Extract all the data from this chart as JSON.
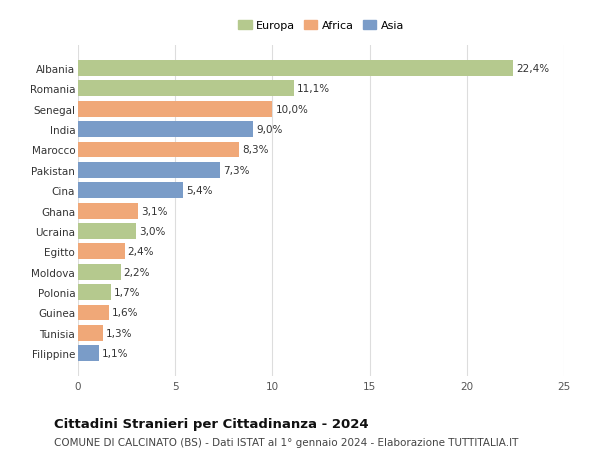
{
  "countries": [
    "Albania",
    "Romania",
    "Senegal",
    "India",
    "Marocco",
    "Pakistan",
    "Cina",
    "Ghana",
    "Ucraina",
    "Egitto",
    "Moldova",
    "Polonia",
    "Guinea",
    "Tunisia",
    "Filippine"
  ],
  "values": [
    22.4,
    11.1,
    10.0,
    9.0,
    8.3,
    7.3,
    5.4,
    3.1,
    3.0,
    2.4,
    2.2,
    1.7,
    1.6,
    1.3,
    1.1
  ],
  "labels": [
    "22,4%",
    "11,1%",
    "10,0%",
    "9,0%",
    "8,3%",
    "7,3%",
    "5,4%",
    "3,1%",
    "3,0%",
    "2,4%",
    "2,2%",
    "1,7%",
    "1,6%",
    "1,3%",
    "1,1%"
  ],
  "continents": [
    "Europa",
    "Europa",
    "Africa",
    "Asia",
    "Africa",
    "Asia",
    "Asia",
    "Africa",
    "Europa",
    "Africa",
    "Europa",
    "Europa",
    "Africa",
    "Africa",
    "Asia"
  ],
  "colors": {
    "Europa": "#b5c98e",
    "Africa": "#f0a878",
    "Asia": "#7a9cc8"
  },
  "legend": [
    "Europa",
    "Africa",
    "Asia"
  ],
  "xlim": [
    0,
    25
  ],
  "xticks": [
    0,
    5,
    10,
    15,
    20,
    25
  ],
  "title": "Cittadini Stranieri per Cittadinanza - 2024",
  "subtitle": "COMUNE DI CALCINATO (BS) - Dati ISTAT al 1° gennaio 2024 - Elaborazione TUTTITALIA.IT",
  "bg_color": "#ffffff",
  "grid_color": "#dddddd",
  "bar_height": 0.78,
  "label_fontsize": 7.5,
  "tick_fontsize": 7.5,
  "title_fontsize": 9.5,
  "subtitle_fontsize": 7.5
}
